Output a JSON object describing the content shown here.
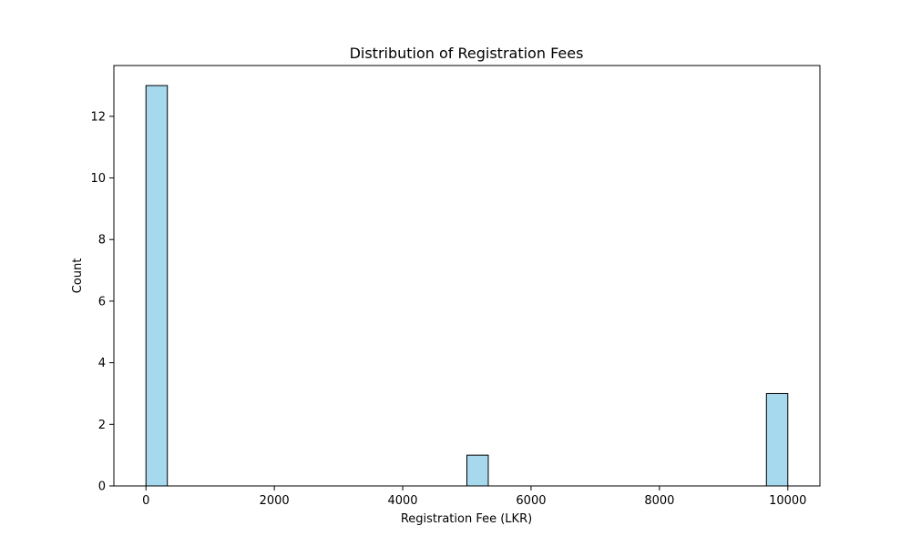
{
  "chart_data": {
    "type": "bar",
    "title": "Distribution of Registration Fees",
    "xlabel": "Registration Fee (LKR)",
    "ylabel": "Count",
    "xlim": [
      -500,
      10500
    ],
    "ylim": [
      0,
      13.65
    ],
    "xticks": [
      0,
      2000,
      4000,
      6000,
      8000,
      10000
    ],
    "yticks": [
      0,
      2,
      4,
      6,
      8,
      10,
      12
    ],
    "grid": false,
    "bar_color": "#a6d8ee",
    "bins": [
      {
        "x0": 0,
        "x1": 333.3,
        "count": 13
      },
      {
        "x0": 5000,
        "x1": 5333.3,
        "count": 1
      },
      {
        "x0": 9666.7,
        "x1": 10000,
        "count": 3
      }
    ]
  }
}
